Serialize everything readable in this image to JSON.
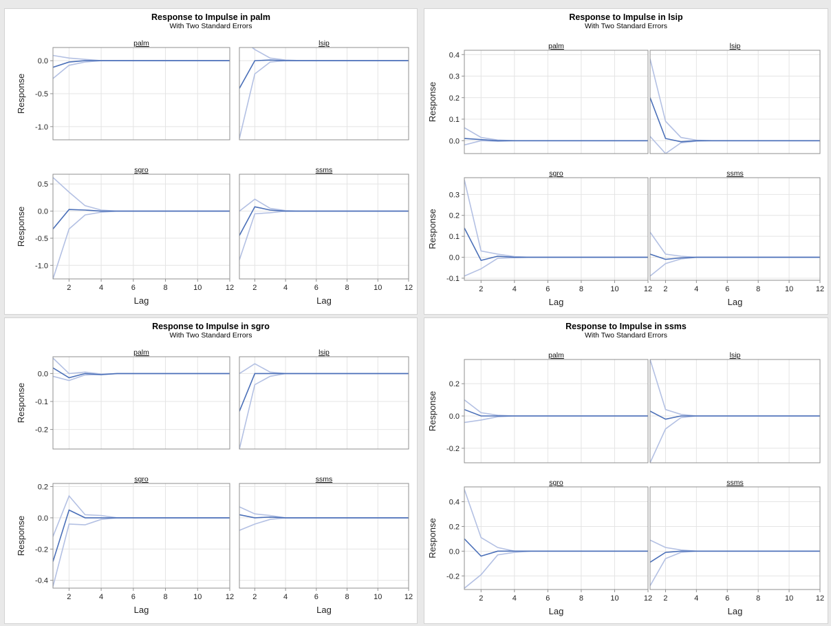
{
  "chart_data": [
    {
      "type": "line",
      "title": "Response to Impulse in palm",
      "subtitle": "With Two Standard Errors",
      "xlabel": "Lag",
      "ylabel": "Response",
      "x": [
        1,
        2,
        3,
        4,
        5,
        6,
        7,
        8,
        9,
        10,
        11,
        12
      ],
      "xticks": [
        2,
        4,
        6,
        8,
        10,
        12
      ],
      "xlim": [
        1,
        12
      ],
      "grid": true,
      "rows": [
        {
          "ylim": [
            -1.2,
            0.2
          ],
          "yticks": [
            0.0,
            -0.5,
            -1.0
          ],
          "ytick_labels": [
            "0.0",
            "-0.5",
            "-1.0"
          ]
        },
        {
          "ylim": [
            -1.25,
            0.68
          ],
          "yticks": [
            0.5,
            0.0,
            -0.5,
            -1.0
          ],
          "ytick_labels": [
            "0.5",
            "0.0",
            "-0.5",
            "-1.0"
          ]
        }
      ],
      "panels": [
        {
          "title": "palm",
          "response": [
            -0.1,
            -0.02,
            0,
            0,
            0,
            0,
            0,
            0,
            0,
            0,
            0,
            0
          ],
          "upper": [
            0.08,
            0.04,
            0.02,
            0,
            0,
            0,
            0,
            0,
            0,
            0,
            0,
            0
          ],
          "lower": [
            -0.27,
            -0.07,
            -0.02,
            0,
            0,
            0,
            0,
            0,
            0,
            0,
            0,
            0
          ]
        },
        {
          "title": "lsip",
          "response": [
            -0.42,
            0,
            0.01,
            0,
            0,
            0,
            0,
            0,
            0,
            0,
            0,
            0
          ],
          "upper": [
            0.35,
            0.17,
            0.04,
            0.01,
            0,
            0,
            0,
            0,
            0,
            0,
            0,
            0
          ],
          "lower": [
            -1.18,
            -0.2,
            -0.02,
            0,
            0,
            0,
            0,
            0,
            0,
            0,
            0,
            0
          ]
        },
        {
          "title": "sgro",
          "response": [
            -0.33,
            0.03,
            0.02,
            0,
            0,
            0,
            0,
            0,
            0,
            0,
            0,
            0
          ],
          "upper": [
            0.62,
            0.35,
            0.1,
            0.02,
            0,
            0,
            0,
            0,
            0,
            0,
            0,
            0
          ],
          "lower": [
            -1.25,
            -0.33,
            -0.07,
            -0.02,
            0,
            0,
            0,
            0,
            0,
            0,
            0,
            0
          ]
        },
        {
          "title": "ssms",
          "response": [
            -0.45,
            0.08,
            0.02,
            0,
            0,
            0,
            0,
            0,
            0,
            0,
            0,
            0
          ],
          "upper": [
            0,
            0.22,
            0.05,
            0.01,
            0,
            0,
            0,
            0,
            0,
            0,
            0,
            0
          ],
          "lower": [
            -0.9,
            -0.05,
            -0.03,
            0,
            0,
            0,
            0,
            0,
            0,
            0,
            0,
            0
          ]
        }
      ]
    },
    {
      "type": "line",
      "title": "Response to Impulse in lsip",
      "subtitle": "With Two Standard Errors",
      "xlabel": "Lag",
      "ylabel": "Response",
      "x": [
        1,
        2,
        3,
        4,
        5,
        6,
        7,
        8,
        9,
        10,
        11,
        12
      ],
      "xticks": [
        2,
        4,
        6,
        8,
        10,
        12
      ],
      "xlim": [
        1,
        12
      ],
      "grid": true,
      "rows": [
        {
          "ylim": [
            -0.06,
            0.42
          ],
          "yticks": [
            0.4,
            0.3,
            0.2,
            0.1,
            0.0
          ],
          "ytick_labels": [
            "0.4",
            "0.3",
            "0.2",
            "0.1",
            "0.0"
          ]
        },
        {
          "ylim": [
            -0.11,
            0.38
          ],
          "yticks": [
            0.3,
            0.2,
            0.1,
            0.0,
            -0.1
          ],
          "ytick_labels": [
            "0.3",
            "0.2",
            "0.1",
            "0.0",
            "-0.1"
          ]
        }
      ],
      "panels": [
        {
          "title": "palm",
          "response": [
            0.01,
            0.005,
            0,
            0,
            0,
            0,
            0,
            0,
            0,
            0,
            0,
            0
          ],
          "upper": [
            0.06,
            0.015,
            0.003,
            0,
            0,
            0,
            0,
            0,
            0,
            0,
            0,
            0
          ],
          "lower": [
            -0.02,
            0,
            -0.003,
            0,
            0,
            0,
            0,
            0,
            0,
            0,
            0,
            0
          ]
        },
        {
          "title": "lsip",
          "response": [
            0.2,
            0.01,
            -0.005,
            0,
            0,
            0,
            0,
            0,
            0,
            0,
            0,
            0
          ],
          "upper": [
            0.38,
            0.09,
            0.015,
            0.002,
            0,
            0,
            0,
            0,
            0,
            0,
            0,
            0
          ],
          "lower": [
            0.02,
            -0.06,
            -0.01,
            -0.002,
            0,
            0,
            0,
            0,
            0,
            0,
            0,
            0
          ]
        },
        {
          "title": "sgro",
          "response": [
            0.14,
            -0.015,
            0.005,
            0,
            0,
            0,
            0,
            0,
            0,
            0,
            0,
            0
          ],
          "upper": [
            0.37,
            0.03,
            0.015,
            0.003,
            0,
            0,
            0,
            0,
            0,
            0,
            0,
            0
          ],
          "lower": [
            -0.09,
            -0.055,
            -0.005,
            -0.002,
            0,
            0,
            0,
            0,
            0,
            0,
            0,
            0
          ]
        },
        {
          "title": "ssms",
          "response": [
            0.015,
            -0.01,
            -0.003,
            0,
            0,
            0,
            0,
            0,
            0,
            0,
            0,
            0
          ],
          "upper": [
            0.12,
            0.015,
            0.005,
            0,
            0,
            0,
            0,
            0,
            0,
            0,
            0,
            0
          ],
          "lower": [
            -0.09,
            -0.03,
            -0.008,
            0,
            0,
            0,
            0,
            0,
            0,
            0,
            0,
            0
          ]
        }
      ]
    },
    {
      "type": "line",
      "title": "Response to Impulse in sgro",
      "subtitle": "With Two Standard Errors",
      "xlabel": "Lag",
      "ylabel": "Response",
      "x": [
        1,
        2,
        3,
        4,
        5,
        6,
        7,
        8,
        9,
        10,
        11,
        12
      ],
      "xticks": [
        2,
        4,
        6,
        8,
        10,
        12
      ],
      "xlim": [
        1,
        12
      ],
      "grid": true,
      "rows": [
        {
          "ylim": [
            -0.27,
            0.06
          ],
          "yticks": [
            0.0,
            -0.1,
            -0.2
          ],
          "ytick_labels": [
            "0.0",
            "-0.1",
            "-0.2"
          ]
        },
        {
          "ylim": [
            -0.45,
            0.22
          ],
          "yticks": [
            0.2,
            0.0,
            -0.2,
            -0.4
          ],
          "ytick_labels": [
            "0.2",
            "0.0",
            "-0.2",
            "-0.4"
          ]
        }
      ],
      "panels": [
        {
          "title": "palm",
          "response": [
            0.02,
            -0.015,
            0,
            -0.004,
            0,
            0,
            0,
            0,
            0,
            0,
            0,
            0
          ],
          "upper": [
            0.055,
            0,
            0.005,
            -0.002,
            0,
            0,
            0,
            0,
            0,
            0,
            0,
            0
          ],
          "lower": [
            -0.01,
            -0.025,
            -0.005,
            -0.004,
            0,
            0,
            0,
            0,
            0,
            0,
            0,
            0
          ]
        },
        {
          "title": "lsip",
          "response": [
            -0.135,
            0,
            0,
            0,
            0,
            0,
            0,
            0,
            0,
            0,
            0,
            0
          ],
          "upper": [
            0,
            0.035,
            0.005,
            0,
            0,
            0,
            0,
            0,
            0,
            0,
            0,
            0
          ],
          "lower": [
            -0.27,
            -0.04,
            -0.01,
            0,
            0,
            0,
            0,
            0,
            0,
            0,
            0,
            0
          ]
        },
        {
          "title": "sgro",
          "response": [
            -0.28,
            0.05,
            0,
            0,
            0,
            0,
            0,
            0,
            0,
            0,
            0,
            0
          ],
          "upper": [
            -0.12,
            0.14,
            0.02,
            0.015,
            0,
            0,
            0,
            0,
            0,
            0,
            0,
            0
          ],
          "lower": [
            -0.44,
            -0.04,
            -0.045,
            -0.01,
            0,
            0,
            0,
            0,
            0,
            0,
            0,
            0
          ]
        },
        {
          "title": "ssms",
          "response": [
            0.02,
            0,
            0.005,
            0,
            0,
            0,
            0,
            0,
            0,
            0,
            0,
            0
          ],
          "upper": [
            0.07,
            0.025,
            0.015,
            0,
            0,
            0,
            0,
            0,
            0,
            0,
            0,
            0
          ],
          "lower": [
            -0.08,
            -0.04,
            -0.01,
            0,
            0,
            0,
            0,
            0,
            0,
            0,
            0,
            0
          ]
        }
      ]
    },
    {
      "type": "line",
      "title": "Response to Impulse in ssms",
      "subtitle": "With Two Standard Errors",
      "xlabel": "Lag",
      "ylabel": "Response",
      "x": [
        1,
        2,
        3,
        4,
        5,
        6,
        7,
        8,
        9,
        10,
        11,
        12
      ],
      "xticks": [
        2,
        4,
        6,
        8,
        10,
        12
      ],
      "xlim": [
        1,
        12
      ],
      "grid": true,
      "rows": [
        {
          "ylim": [
            -0.29,
            0.35
          ],
          "yticks": [
            0.2,
            0.0,
            -0.2
          ],
          "ytick_labels": [
            "0.2",
            "0.0",
            "-0.2"
          ]
        },
        {
          "ylim": [
            -0.31,
            0.52
          ],
          "yticks": [
            0.4,
            0.2,
            0.0,
            -0.2
          ],
          "ytick_labels": [
            "0.4",
            "0.2",
            "0.0",
            "-0.2"
          ]
        }
      ],
      "panels": [
        {
          "title": "palm",
          "response": [
            0.04,
            0,
            0,
            0,
            0,
            0,
            0,
            0,
            0,
            0,
            0,
            0
          ],
          "upper": [
            0.1,
            0.02,
            0.005,
            0,
            0,
            0,
            0,
            0,
            0,
            0,
            0,
            0
          ],
          "lower": [
            -0.04,
            -0.025,
            -0.005,
            0,
            0,
            0,
            0,
            0,
            0,
            0,
            0,
            0
          ]
        },
        {
          "title": "lsip",
          "response": [
            0.03,
            -0.02,
            0,
            0,
            0,
            0,
            0,
            0,
            0,
            0,
            0,
            0
          ],
          "upper": [
            0.35,
            0.04,
            0.01,
            0,
            0,
            0,
            0,
            0,
            0,
            0,
            0,
            0
          ],
          "lower": [
            -0.29,
            -0.08,
            -0.01,
            0,
            0,
            0,
            0,
            0,
            0,
            0,
            0,
            0
          ]
        },
        {
          "title": "sgro",
          "response": [
            0.1,
            -0.04,
            0,
            0,
            0,
            0,
            0,
            0,
            0,
            0,
            0,
            0
          ],
          "upper": [
            0.5,
            0.11,
            0.03,
            0,
            0,
            0,
            0,
            0,
            0,
            0,
            0,
            0
          ],
          "lower": [
            -0.3,
            -0.19,
            -0.03,
            -0.01,
            0,
            0,
            0,
            0,
            0,
            0,
            0,
            0
          ]
        },
        {
          "title": "ssms",
          "response": [
            -0.09,
            -0.01,
            0,
            0,
            0,
            0,
            0,
            0,
            0,
            0,
            0,
            0
          ],
          "upper": [
            0.09,
            0.03,
            0.01,
            0,
            0,
            0,
            0,
            0,
            0,
            0,
            0,
            0
          ],
          "lower": [
            -0.28,
            -0.06,
            -0.01,
            0,
            0,
            0,
            0,
            0,
            0,
            0,
            0,
            0
          ]
        }
      ]
    }
  ],
  "colors": {
    "response_line": "#4a6fb8",
    "band_line": "#b3c0e3",
    "grid": "#e4e4e4",
    "axis": "#8f8f8f"
  }
}
